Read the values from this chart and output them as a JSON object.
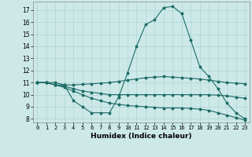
{
  "title": "",
  "xlabel": "Humidex (Indice chaleur)",
  "xlim": [
    -0.5,
    23.5
  ],
  "ylim": [
    7.7,
    17.7
  ],
  "yticks": [
    8,
    9,
    10,
    11,
    12,
    13,
    14,
    15,
    16,
    17
  ],
  "xticks": [
    0,
    1,
    2,
    3,
    4,
    5,
    6,
    7,
    8,
    9,
    10,
    11,
    12,
    13,
    14,
    15,
    16,
    17,
    18,
    19,
    20,
    21,
    22,
    23
  ],
  "bg_color": "#cce9e8",
  "grid_color": "#aed4d3",
  "line_color": "#1c6b65",
  "series": [
    {
      "x": [
        0,
        1,
        2,
        3,
        4,
        5,
        6,
        7,
        8,
        9,
        10,
        11,
        12,
        13,
        14,
        15,
        16,
        17,
        18,
        19,
        20,
        21,
        22,
        23
      ],
      "y": [
        11,
        11,
        11,
        10.8,
        9.5,
        9.0,
        8.5,
        8.5,
        8.5,
        9.8,
        11.8,
        14.0,
        15.8,
        16.2,
        17.2,
        17.3,
        16.7,
        14.5,
        12.3,
        11.5,
        10.5,
        9.3,
        8.5,
        8.0
      ]
    },
    {
      "x": [
        0,
        1,
        2,
        3,
        4,
        5,
        6,
        7,
        8,
        9,
        10,
        11,
        12,
        13,
        14,
        15,
        16,
        17,
        18,
        19,
        20,
        21,
        22,
        23
      ],
      "y": [
        11,
        11,
        10.8,
        10.8,
        10.8,
        10.85,
        10.9,
        10.95,
        11.0,
        11.1,
        11.2,
        11.3,
        11.4,
        11.45,
        11.5,
        11.45,
        11.4,
        11.35,
        11.3,
        11.2,
        11.1,
        11.0,
        10.95,
        10.9
      ]
    },
    {
      "x": [
        0,
        1,
        2,
        3,
        4,
        5,
        6,
        7,
        8,
        9,
        10,
        11,
        12,
        13,
        14,
        15,
        16,
        17,
        18,
        19,
        20,
        21,
        22,
        23
      ],
      "y": [
        11,
        11,
        10.8,
        10.7,
        10.5,
        10.3,
        10.2,
        10.1,
        10.0,
        10.0,
        10.0,
        10.0,
        10.0,
        10.0,
        10.0,
        10.0,
        10.0,
        10.0,
        10.0,
        10.0,
        9.95,
        9.9,
        9.8,
        9.7
      ]
    },
    {
      "x": [
        0,
        1,
        2,
        3,
        4,
        5,
        6,
        7,
        8,
        9,
        10,
        11,
        12,
        13,
        14,
        15,
        16,
        17,
        18,
        19,
        20,
        21,
        22,
        23
      ],
      "y": [
        11,
        11,
        10.8,
        10.6,
        10.3,
        10.0,
        9.7,
        9.5,
        9.3,
        9.2,
        9.1,
        9.05,
        9.0,
        8.95,
        8.9,
        8.9,
        8.9,
        8.85,
        8.8,
        8.7,
        8.5,
        8.3,
        8.1,
        7.9
      ]
    }
  ]
}
